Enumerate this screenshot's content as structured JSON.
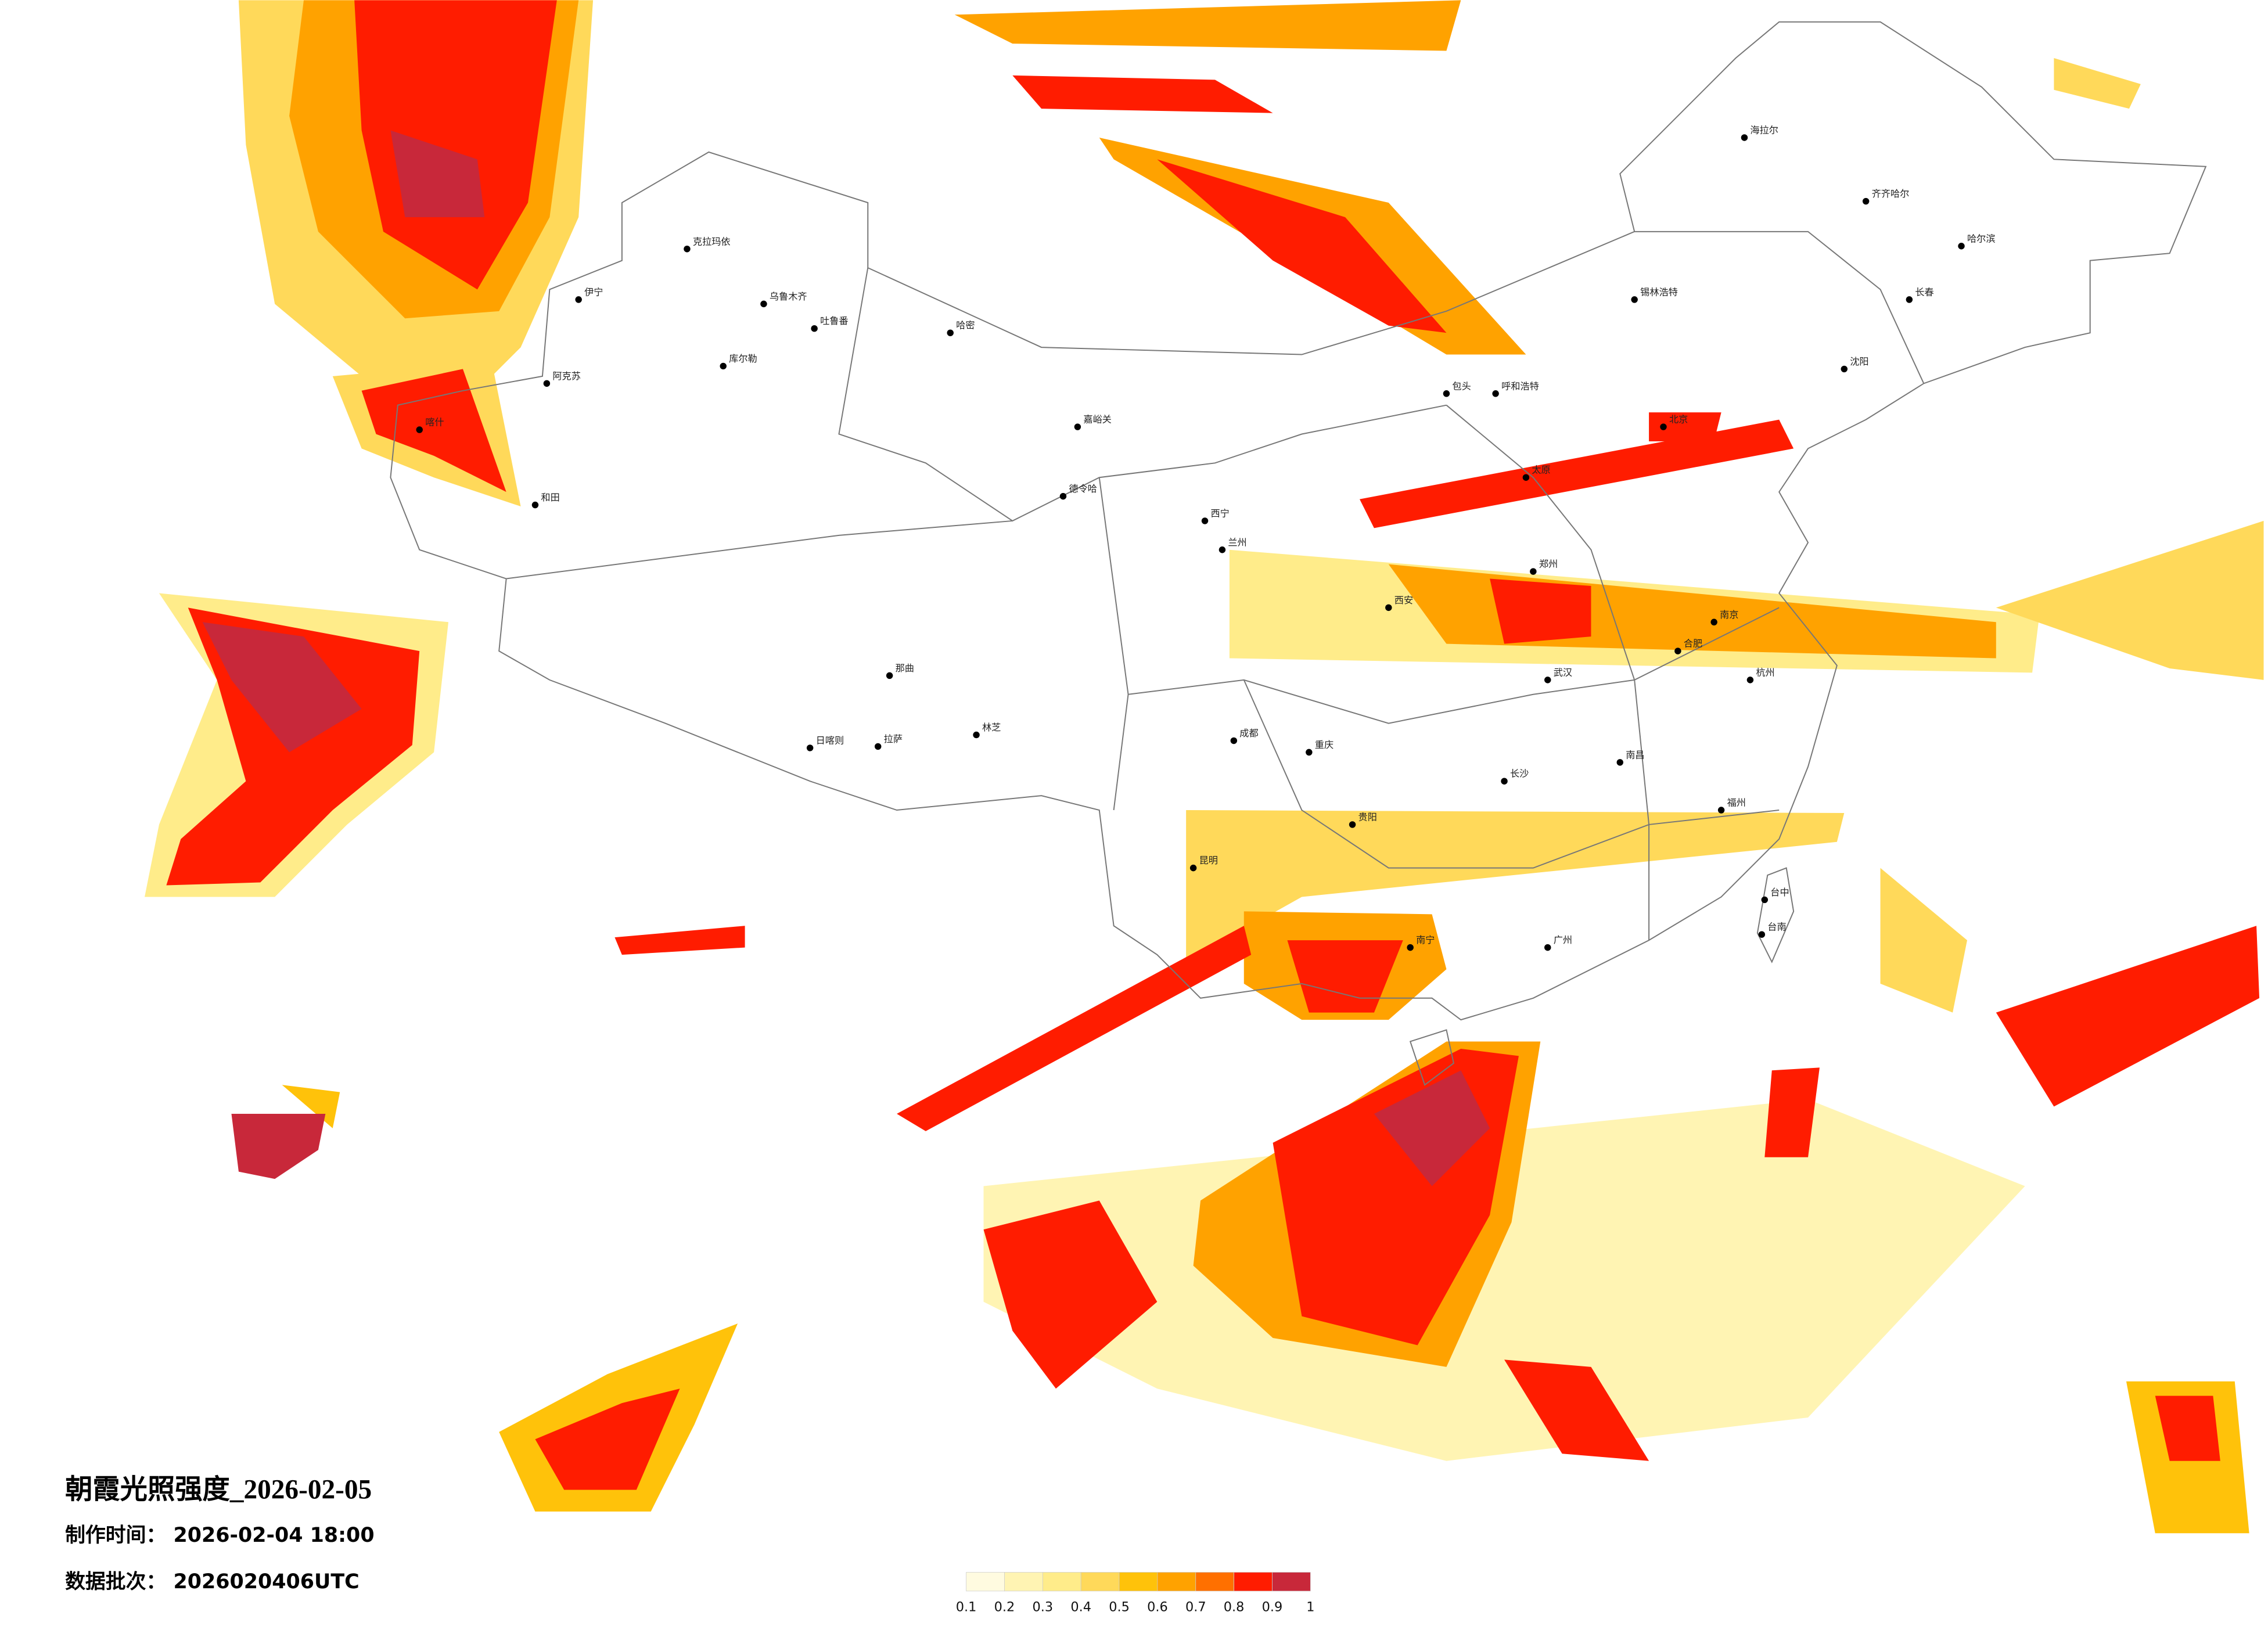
{
  "title": "朝霞光照强度_2026-02-05",
  "made_time": "制作时间：  2026-02-04 18:00",
  "batch": "数据批次：  2026020406UTC",
  "legend": {
    "ticks": [
      0.1,
      0.2,
      0.3,
      0.4,
      0.5,
      0.6,
      0.7,
      0.8,
      0.9,
      1
    ],
    "colors": [
      "#fffbe0",
      "#fff4b3",
      "#ffec8a",
      "#ffd95a",
      "#ffc20a",
      "#ffa200",
      "#ff7000",
      "#ff1c00",
      "#c8283a"
    ]
  },
  "cities": [
    "克拉玛依",
    "伊宁",
    "乌鲁木齐",
    "吐鲁番",
    "哈密",
    "库尔勒",
    "阿克苏",
    "喀什",
    "和田",
    "那曲",
    "拉萨",
    "日喀则",
    "林芝",
    "德令哈",
    "嘉峪关",
    "西宁",
    "兰州",
    "海拉尔",
    "齐齐哈尔",
    "哈尔滨",
    "长春",
    "沈阳",
    "呼和浩特",
    "锡林浩特",
    "包头",
    "北京",
    "太原",
    "郑州",
    "西安",
    "成都",
    "重庆",
    "贵阳",
    "昆明",
    "武汉",
    "长沙",
    "南昌",
    "合肥",
    "南京",
    "杭州",
    "福州",
    "广州",
    "南宁",
    "台中",
    "台南"
  ]
}
